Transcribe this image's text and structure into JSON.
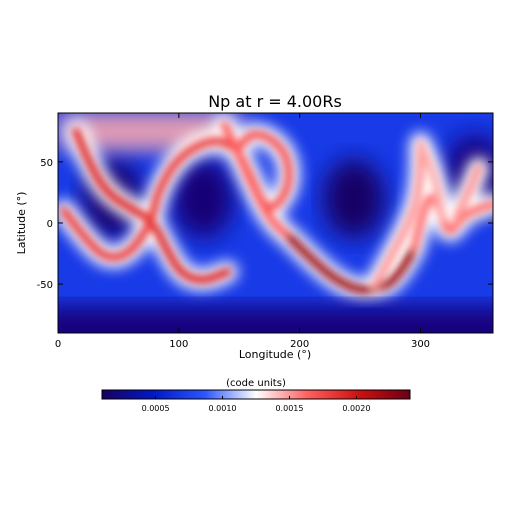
{
  "chart_data": {
    "type": "heatmap",
    "title": "Np at r = 4.00Rs",
    "xlabel": "Longitude (°)",
    "ylabel": "Latitude (°)",
    "xlim": [
      0,
      360
    ],
    "ylim": [
      -90,
      90
    ],
    "x_ticks": [
      0,
      100,
      200,
      300
    ],
    "y_ticks": [
      -50,
      0,
      50
    ],
    "colorbar": {
      "label": "(code units)",
      "range": [
        0.0001,
        0.0024
      ],
      "ticks": [
        0.0005,
        0.001,
        0.0015,
        0.002
      ],
      "tick_labels": [
        "0.0005",
        "0.0010",
        "0.0015",
        "0.0020"
      ],
      "colormap": [
        "#1a0060",
        "#0018c8",
        "#2a55ff",
        "#ffffff",
        "#ff6060",
        "#d01010",
        "#6a0014"
      ]
    },
    "background_value": 0.0007,
    "polar_low_value": 0.0002,
    "north_cap_region": {
      "lon": [
        0,
        150
      ],
      "lat": [
        60,
        90
      ],
      "value": 0.00145
    },
    "ridges": [
      {
        "name": "",
        "value": 0.0019,
        "points": [
          [
            15,
            75
          ],
          [
            25,
            50
          ],
          [
            40,
            25
          ],
          [
            60,
            12
          ],
          [
            78,
            2
          ],
          [
            90,
            -22
          ],
          [
            102,
            -42
          ],
          [
            120,
            -48
          ],
          [
            140,
            -40
          ]
        ]
      },
      {
        "name": "",
        "value": 0.0018,
        "points": [
          [
            5,
            10
          ],
          [
            20,
            -10
          ],
          [
            40,
            -30
          ],
          [
            60,
            -25
          ],
          [
            78,
            2
          ],
          [
            82,
            25
          ],
          [
            100,
            55
          ],
          [
            130,
            70
          ],
          [
            148,
            60
          ]
        ]
      },
      {
        "name": "",
        "value": 0.0017,
        "points": [
          [
            148,
            60
          ],
          [
            160,
            38
          ],
          [
            168,
            18
          ],
          [
            178,
            10
          ],
          [
            192,
            30
          ],
          [
            190,
            55
          ],
          [
            176,
            70
          ],
          [
            160,
            74
          ],
          [
            148,
            60
          ]
        ]
      },
      {
        "name": "",
        "value": 0.00165,
        "points": [
          [
            138,
            80
          ],
          [
            150,
            55
          ],
          [
            162,
            28
          ],
          [
            176,
            2
          ],
          [
            192,
            -12
          ]
        ]
      },
      {
        "name": "",
        "value": 0.0022,
        "points": [
          [
            192,
            -12
          ],
          [
            212,
            -32
          ],
          [
            232,
            -48
          ],
          [
            252,
            -56
          ],
          [
            272,
            -52
          ],
          [
            285,
            -38
          ],
          [
            295,
            -20
          ]
        ]
      },
      {
        "name": "",
        "value": 0.0016,
        "points": [
          [
            295,
            -20
          ],
          [
            302,
            10
          ],
          [
            310,
            25
          ],
          [
            318,
            5
          ],
          [
            324,
            -10
          ],
          [
            334,
            5
          ],
          [
            348,
            12
          ],
          [
            360,
            15
          ]
        ]
      },
      {
        "name": "",
        "value": 0.0015,
        "points": [
          [
            262,
            -52
          ],
          [
            280,
            -20
          ],
          [
            295,
            10
          ],
          [
            300,
            35
          ],
          [
            300,
            65
          ]
        ]
      },
      {
        "name": "",
        "value": 0.00145,
        "points": [
          [
            300,
            65
          ],
          [
            312,
            40
          ],
          [
            318,
            5
          ]
        ]
      },
      {
        "name": "",
        "value": 0.0015,
        "points": [
          [
            348,
            45
          ],
          [
            340,
            25
          ],
          [
            330,
            5
          ]
        ]
      }
    ],
    "low_density_regions": [
      {
        "center": [
          45,
          20
        ],
        "value": 0.00015
      },
      {
        "center": [
          120,
          20
        ],
        "value": 0.00018
      },
      {
        "center": [
          245,
          20
        ],
        "value": 0.00012
      },
      {
        "center": [
          345,
          40
        ],
        "value": 0.0002
      }
    ]
  }
}
